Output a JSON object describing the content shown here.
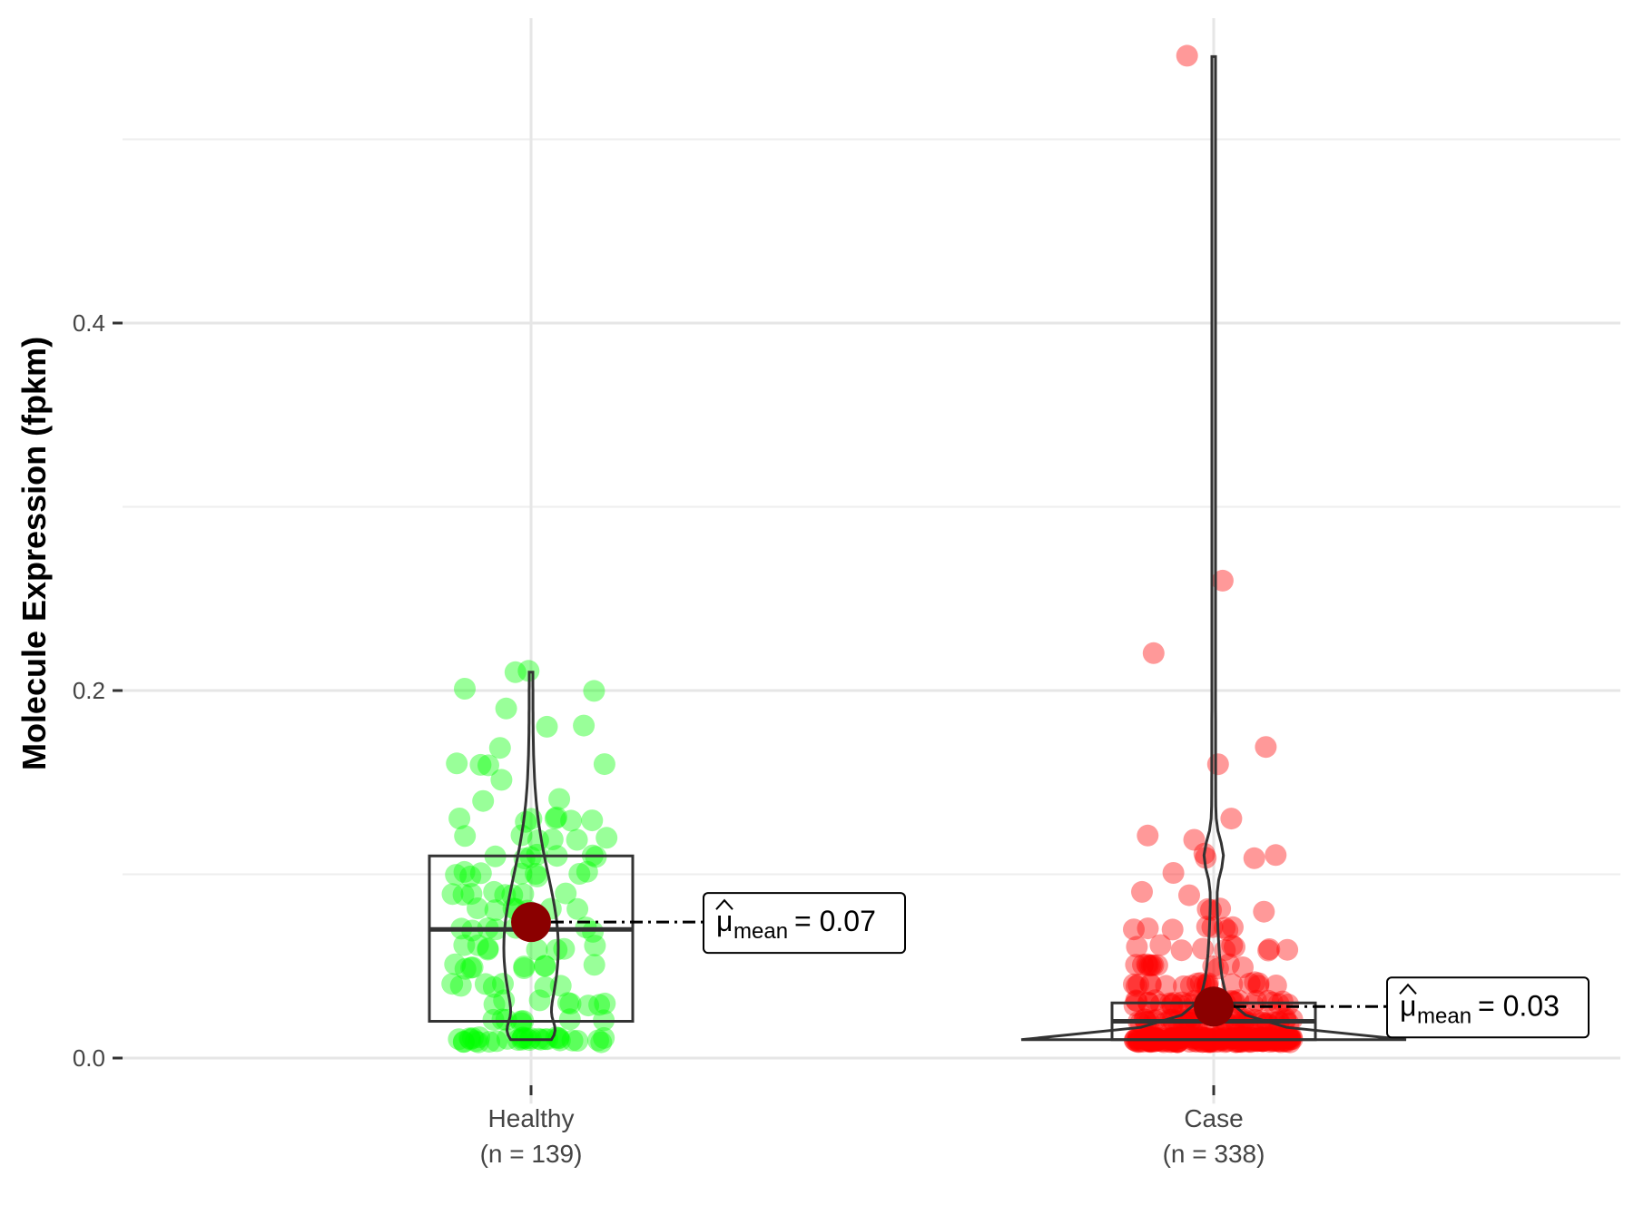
{
  "chart_data": {
    "type": "scatter",
    "subtype": "violin-box-jitter",
    "ylabel": "Molecule Expression (fpkm)",
    "xlabel": "",
    "ylim": [
      -0.01,
      0.57
    ],
    "yticks": [
      0.0,
      0.2,
      0.4
    ],
    "ytick_labels": [
      "0.0",
      "0.2",
      "0.4"
    ],
    "grid": true,
    "legend": "none",
    "categories": [
      {
        "name": "Healthy",
        "n_label": "(n = 139)"
      },
      {
        "name": "Case",
        "n_label": "(n = 338)"
      }
    ],
    "series": [
      {
        "category": "Healthy",
        "color": "#00ff00",
        "box": {
          "q1": 0.02,
          "median": 0.07,
          "q3": 0.11
        },
        "mean": 0.074,
        "mean_label": "0.07",
        "violin_range": [
          0.01,
          0.21
        ],
        "points": [
          0.01,
          0.01,
          0.01,
          0.01,
          0.01,
          0.01,
          0.01,
          0.01,
          0.01,
          0.01,
          0.01,
          0.01,
          0.01,
          0.01,
          0.01,
          0.01,
          0.01,
          0.01,
          0.01,
          0.01,
          0.01,
          0.01,
          0.01,
          0.01,
          0.01,
          0.01,
          0.01,
          0.01,
          0.01,
          0.01,
          0.02,
          0.02,
          0.02,
          0.02,
          0.02,
          0.02,
          0.03,
          0.03,
          0.03,
          0.03,
          0.03,
          0.04,
          0.04,
          0.04,
          0.04,
          0.04,
          0.05,
          0.05,
          0.05,
          0.05,
          0.05,
          0.05,
          0.05,
          0.06,
          0.06,
          0.06,
          0.06,
          0.06,
          0.06,
          0.07,
          0.07,
          0.07,
          0.07,
          0.07,
          0.08,
          0.08,
          0.08,
          0.08,
          0.08,
          0.09,
          0.09,
          0.09,
          0.09,
          0.09,
          0.09,
          0.1,
          0.1,
          0.1,
          0.1,
          0.1,
          0.1,
          0.1,
          0.11,
          0.11,
          0.11,
          0.11,
          0.11,
          0.12,
          0.12,
          0.12,
          0.12,
          0.12,
          0.13,
          0.13,
          0.13,
          0.13,
          0.13,
          0.13,
          0.13,
          0.14,
          0.14,
          0.15,
          0.16,
          0.16,
          0.16,
          0.16,
          0.17,
          0.18,
          0.18,
          0.19,
          0.2,
          0.2,
          0.21,
          0.21,
          0.03,
          0.04,
          0.05,
          0.06,
          0.07,
          0.08,
          0.09,
          0.1,
          0.11,
          0.02,
          0.03,
          0.06,
          0.07,
          0.09,
          0.1,
          0.12,
          0.05,
          0.04,
          0.08,
          0.02,
          0.01,
          0.01,
          0.11,
          0.07,
          0.03
        ]
      },
      {
        "category": "Case",
        "color": "#ff0000",
        "box": {
          "q1": 0.01,
          "median": 0.02,
          "q3": 0.03
        },
        "mean": 0.028,
        "mean_label": "0.03",
        "violin_range": [
          0.01,
          0.545
        ],
        "points": [
          0.545,
          0.26,
          0.22,
          0.17,
          0.16,
          0.13,
          0.12,
          0.12,
          0.11,
          0.11,
          0.11,
          0.11,
          0.1,
          0.09,
          0.09,
          0.08,
          0.08,
          0.08,
          0.08,
          0.07,
          0.07,
          0.07,
          0.07,
          0.07,
          0.07,
          0.07,
          0.07,
          0.06,
          0.06,
          0.06,
          0.06,
          0.06,
          0.06,
          0.06,
          0.06,
          0.06,
          0.06,
          0.05,
          0.05,
          0.05,
          0.05,
          0.05,
          0.05,
          0.05,
          0.05,
          0.05,
          0.05,
          0.05,
          0.05,
          0.04,
          0.04,
          0.04,
          0.04,
          0.04,
          0.04,
          0.04,
          0.04,
          0.04,
          0.04,
          0.04,
          0.04,
          0.04,
          0.04,
          0.04,
          0.04,
          0.04,
          0.04,
          0.04,
          0.04,
          0.03,
          0.03,
          0.03,
          0.03,
          0.03,
          0.03,
          0.03,
          0.03,
          0.03,
          0.03,
          0.03,
          0.03,
          0.03,
          0.03,
          0.03,
          0.03,
          0.03,
          0.03,
          0.03,
          0.03,
          0.03,
          0.03,
          0.03,
          0.03,
          0.03,
          0.03,
          0.03,
          0.03,
          0.03,
          0.03,
          0.02,
          0.02,
          0.02,
          0.02,
          0.02,
          0.02,
          0.02,
          0.02,
          0.02,
          0.02,
          0.02,
          0.02,
          0.02,
          0.02,
          0.02,
          0.02,
          0.02,
          0.02,
          0.02,
          0.02,
          0.02,
          0.02,
          0.02,
          0.02,
          0.02,
          0.02,
          0.02,
          0.02,
          0.02,
          0.02,
          0.02,
          0.02,
          0.02,
          0.02,
          0.02,
          0.02,
          0.02,
          0.02,
          0.02,
          0.02,
          0.02,
          0.02,
          0.02,
          0.02,
          0.02,
          0.02,
          0.02,
          0.02,
          0.02,
          0.02,
          0.01,
          0.01,
          0.01,
          0.01,
          0.01,
          0.01,
          0.01,
          0.01,
          0.01,
          0.01,
          0.01,
          0.01,
          0.01,
          0.01,
          0.01,
          0.01,
          0.01,
          0.01,
          0.01,
          0.01,
          0.01,
          0.01,
          0.01,
          0.01,
          0.01,
          0.01,
          0.01,
          0.01,
          0.01,
          0.01,
          0.01,
          0.01,
          0.01,
          0.01,
          0.01,
          0.01,
          0.01,
          0.01,
          0.01,
          0.01,
          0.01,
          0.01,
          0.01,
          0.01,
          0.01,
          0.01,
          0.01,
          0.01,
          0.01,
          0.01,
          0.01,
          0.01,
          0.01,
          0.01,
          0.01,
          0.01,
          0.01,
          0.01,
          0.01,
          0.01,
          0.01,
          0.01,
          0.01,
          0.01,
          0.01,
          0.01,
          0.01,
          0.01,
          0.01,
          0.01,
          0.01,
          0.01,
          0.01,
          0.01,
          0.01,
          0.01,
          0.01,
          0.01,
          0.01,
          0.01,
          0.01,
          0.01,
          0.01,
          0.01,
          0.01,
          0.01,
          0.01,
          0.01,
          0.01,
          0.01,
          0.01,
          0.01,
          0.01,
          0.01,
          0.01,
          0.01,
          0.01,
          0.01,
          0.01,
          0.01,
          0.01,
          0.01,
          0.01,
          0.01,
          0.01,
          0.01,
          0.01,
          0.01,
          0.01,
          0.01,
          0.01,
          0.01,
          0.01,
          0.01,
          0.01,
          0.01,
          0.01,
          0.01,
          0.01,
          0.01,
          0.01,
          0.01,
          0.01,
          0.01,
          0.01,
          0.01,
          0.01,
          0.01,
          0.01,
          0.01,
          0.01,
          0.01,
          0.01,
          0.01,
          0.01,
          0.01,
          0.01,
          0.01,
          0.01,
          0.01,
          0.01,
          0.01,
          0.01,
          0.01,
          0.01,
          0.01,
          0.01,
          0.01,
          0.01,
          0.01,
          0.01,
          0.01,
          0.01,
          0.01,
          0.01,
          0.01,
          0.01,
          0.01,
          0.01,
          0.01,
          0.01,
          0.01,
          0.01,
          0.01,
          0.01,
          0.01,
          0.01,
          0.01,
          0.01,
          0.01,
          0.01,
          0.01,
          0.01,
          0.01,
          0.01,
          0.01,
          0.01,
          0.01,
          0.01,
          0.01,
          0.01,
          0.01,
          0.01,
          0.01,
          0.01,
          0.01,
          0.01,
          0.01,
          0.01
        ]
      }
    ],
    "mean_marker_color": "#8b0000"
  }
}
